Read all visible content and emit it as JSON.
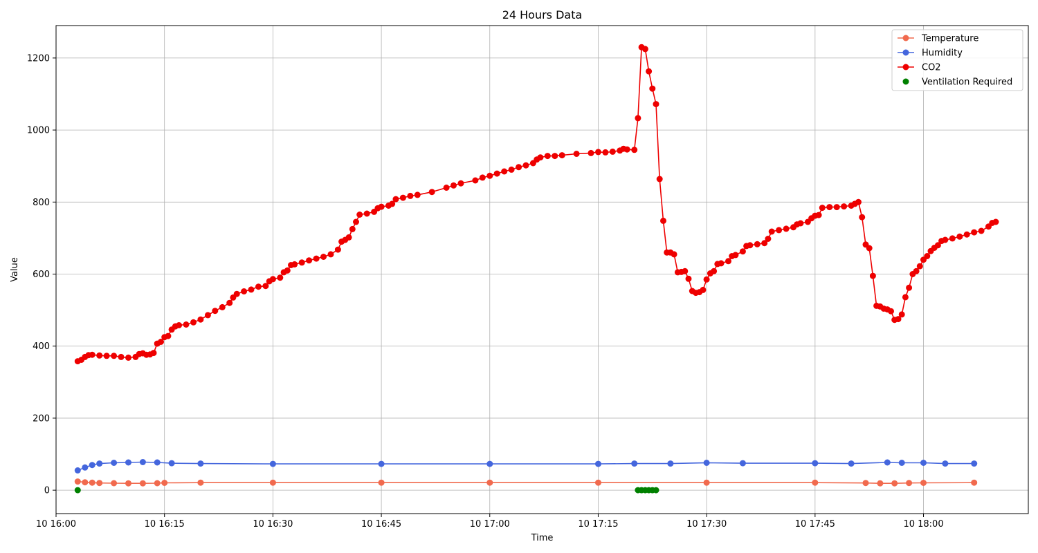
{
  "chart_data": {
    "type": "line",
    "title": "24 Hours Data",
    "xlabel": "Time",
    "ylabel": "Value",
    "xlim": [
      "16:00:00",
      "18:14:30"
    ],
    "ylim": [
      -65,
      1290
    ],
    "grid": true,
    "legend_position": "top-right",
    "x_ticks": [
      "16:00",
      "16:15",
      "16:30",
      "16:45",
      "17:00",
      "17:15",
      "17:30",
      "17:45",
      "18:00"
    ],
    "x_tick_labels": [
      "10 16:00",
      "10 16:15",
      "10 16:30",
      "10 16:45",
      "10 17:00",
      "10 17:15",
      "10 17:30",
      "10 17:45",
      "10 18:00"
    ],
    "y_ticks": [
      0,
      200,
      400,
      600,
      800,
      1000,
      1200
    ],
    "y_tick_labels": [
      "0",
      "200",
      "400",
      "600",
      "800",
      "1000",
      "1200"
    ],
    "series": [
      {
        "name": "Temperature",
        "color": "#f16a4e",
        "style": "line-marker",
        "points": [
          [
            "16:03",
            24
          ],
          [
            "16:04",
            22
          ],
          [
            "16:05",
            21
          ],
          [
            "16:06",
            20
          ],
          [
            "16:08",
            19.5
          ],
          [
            "16:10",
            19
          ],
          [
            "16:12",
            19
          ],
          [
            "16:14",
            19.5
          ],
          [
            "16:15",
            20.5
          ],
          [
            "16:20",
            21
          ],
          [
            "16:30",
            21
          ],
          [
            "16:45",
            21
          ],
          [
            "17:00",
            21
          ],
          [
            "17:15",
            21
          ],
          [
            "17:30",
            21
          ],
          [
            "17:45",
            21
          ],
          [
            "17:52",
            20
          ],
          [
            "17:54",
            19
          ],
          [
            "17:56",
            19
          ],
          [
            "17:58",
            20
          ],
          [
            "18:00",
            20.5
          ],
          [
            "18:07",
            21
          ]
        ]
      },
      {
        "name": "Humidity",
        "color": "#4466dd",
        "style": "line-marker",
        "points": [
          [
            "16:03",
            55
          ],
          [
            "16:04",
            63
          ],
          [
            "16:05",
            70
          ],
          [
            "16:06",
            74
          ],
          [
            "16:08",
            76
          ],
          [
            "16:10",
            77
          ],
          [
            "16:12",
            78
          ],
          [
            "16:14",
            77
          ],
          [
            "16:16",
            75
          ],
          [
            "16:20",
            74
          ],
          [
            "16:30",
            73
          ],
          [
            "16:45",
            73
          ],
          [
            "17:00",
            73
          ],
          [
            "17:15",
            73
          ],
          [
            "17:20",
            74
          ],
          [
            "17:25",
            74
          ],
          [
            "17:30",
            76
          ],
          [
            "17:35",
            75
          ],
          [
            "17:45",
            75
          ],
          [
            "17:50",
            74
          ],
          [
            "17:55",
            77
          ],
          [
            "17:57",
            76
          ],
          [
            "18:00",
            76
          ],
          [
            "18:03",
            74
          ],
          [
            "18:07",
            74
          ]
        ]
      },
      {
        "name": "CO2",
        "color": "#ee0000",
        "style": "line-marker",
        "points": [
          [
            "16:03",
            358
          ],
          [
            "16:03:30",
            362
          ],
          [
            "16:04",
            370
          ],
          [
            "16:04:30",
            375
          ],
          [
            "16:05",
            376
          ],
          [
            "16:06",
            374
          ],
          [
            "16:07",
            373
          ],
          [
            "16:08",
            373
          ],
          [
            "16:09",
            370
          ],
          [
            "16:10",
            368
          ],
          [
            "16:11",
            370
          ],
          [
            "16:11:30",
            378
          ],
          [
            "16:12",
            380
          ],
          [
            "16:12:30",
            376
          ],
          [
            "16:13",
            377
          ],
          [
            "16:13:30",
            381
          ],
          [
            "16:14",
            407
          ],
          [
            "16:14:30",
            412
          ],
          [
            "16:15",
            425
          ],
          [
            "16:15:30",
            428
          ],
          [
            "16:16",
            446
          ],
          [
            "16:16:30",
            455
          ],
          [
            "16:17",
            458
          ],
          [
            "16:18",
            460
          ],
          [
            "16:19",
            466
          ],
          [
            "16:20",
            474
          ],
          [
            "16:21",
            486
          ],
          [
            "16:22",
            498
          ],
          [
            "16:23",
            508
          ],
          [
            "16:24",
            520
          ],
          [
            "16:24:30",
            535
          ],
          [
            "16:25",
            545
          ],
          [
            "16:26",
            552
          ],
          [
            "16:27",
            557
          ],
          [
            "16:28",
            565
          ],
          [
            "16:29",
            567
          ],
          [
            "16:29:30",
            580
          ],
          [
            "16:30",
            586
          ],
          [
            "16:31",
            590
          ],
          [
            "16:31:30",
            605
          ],
          [
            "16:32",
            610
          ],
          [
            "16:32:30",
            625
          ],
          [
            "16:33",
            627
          ],
          [
            "16:34",
            632
          ],
          [
            "16:35",
            638
          ],
          [
            "16:36",
            643
          ],
          [
            "16:37",
            648
          ],
          [
            "16:38",
            655
          ],
          [
            "16:39",
            668
          ],
          [
            "16:39:30",
            690
          ],
          [
            "16:40",
            695
          ],
          [
            "16:40:30",
            702
          ],
          [
            "16:41",
            725
          ],
          [
            "16:41:30",
            745
          ],
          [
            "16:42",
            765
          ],
          [
            "16:43",
            768
          ],
          [
            "16:44",
            773
          ],
          [
            "16:44:30",
            783
          ],
          [
            "16:45",
            787
          ],
          [
            "16:46",
            790
          ],
          [
            "16:46:30",
            795
          ],
          [
            "16:47",
            808
          ],
          [
            "16:48",
            812
          ],
          [
            "16:49",
            817
          ],
          [
            "16:50",
            820
          ],
          [
            "16:52",
            828
          ],
          [
            "16:54",
            840
          ],
          [
            "16:55",
            846
          ],
          [
            "16:56",
            852
          ],
          [
            "16:58",
            860
          ],
          [
            "16:59",
            868
          ],
          [
            "17:00",
            873
          ],
          [
            "17:01",
            879
          ],
          [
            "17:02",
            885
          ],
          [
            "17:03",
            890
          ],
          [
            "17:04",
            897
          ],
          [
            "17:05",
            902
          ],
          [
            "17:06",
            908
          ],
          [
            "17:06:30",
            918
          ],
          [
            "17:07",
            924
          ],
          [
            "17:08",
            928
          ],
          [
            "17:09",
            928
          ],
          [
            "17:10",
            930
          ],
          [
            "17:12",
            934
          ],
          [
            "17:14",
            936
          ],
          [
            "17:15",
            939
          ],
          [
            "17:16",
            938
          ],
          [
            "17:17",
            940
          ],
          [
            "17:18",
            943
          ],
          [
            "17:18:30",
            948
          ],
          [
            "17:19",
            946
          ],
          [
            "17:20",
            945
          ],
          [
            "17:20:30",
            1033
          ],
          [
            "17:21",
            1230
          ],
          [
            "17:21:30",
            1225
          ],
          [
            "17:22",
            1163
          ],
          [
            "17:22:30",
            1115
          ],
          [
            "17:23",
            1072
          ],
          [
            "17:23:30",
            864
          ],
          [
            "17:24",
            748
          ],
          [
            "17:24:30",
            660
          ],
          [
            "17:25",
            660
          ],
          [
            "17:25:30",
            655
          ],
          [
            "17:26",
            605
          ],
          [
            "17:26:30",
            606
          ],
          [
            "17:27",
            608
          ],
          [
            "17:27:30",
            587
          ],
          [
            "17:28",
            553
          ],
          [
            "17:28:30",
            548
          ],
          [
            "17:29",
            550
          ],
          [
            "17:29:30",
            556
          ],
          [
            "17:30",
            585
          ],
          [
            "17:30:30",
            602
          ],
          [
            "17:31",
            608
          ],
          [
            "17:31:30",
            628
          ],
          [
            "17:32",
            630
          ],
          [
            "17:33",
            636
          ],
          [
            "17:33:30",
            650
          ],
          [
            "17:34",
            653
          ],
          [
            "17:35",
            663
          ],
          [
            "17:35:30",
            678
          ],
          [
            "17:36",
            680
          ],
          [
            "17:37",
            683
          ],
          [
            "17:38",
            686
          ],
          [
            "17:38:30",
            698
          ],
          [
            "17:39",
            718
          ],
          [
            "17:40",
            722
          ],
          [
            "17:41",
            726
          ],
          [
            "17:42",
            730
          ],
          [
            "17:42:30",
            738
          ],
          [
            "17:43",
            741
          ],
          [
            "17:44",
            745
          ],
          [
            "17:44:30",
            755
          ],
          [
            "17:45",
            762
          ],
          [
            "17:45:30",
            764
          ],
          [
            "17:46",
            784
          ],
          [
            "17:47",
            786
          ],
          [
            "17:48",
            786
          ],
          [
            "17:49",
            788
          ],
          [
            "17:50",
            790
          ],
          [
            "17:50:30",
            795
          ],
          [
            "17:51",
            800
          ],
          [
            "17:51:30",
            758
          ],
          [
            "17:52",
            682
          ],
          [
            "17:52:30",
            672
          ],
          [
            "17:53",
            595
          ],
          [
            "17:53:30",
            512
          ],
          [
            "17:54",
            510
          ],
          [
            "17:54:30",
            504
          ],
          [
            "17:55",
            502
          ],
          [
            "17:55:30",
            497
          ],
          [
            "17:56",
            473
          ],
          [
            "17:56:30",
            475
          ],
          [
            "17:57",
            488
          ],
          [
            "17:57:30",
            536
          ],
          [
            "17:58",
            562
          ],
          [
            "17:58:30",
            600
          ],
          [
            "17:59",
            608
          ],
          [
            "17:59:30",
            622
          ],
          [
            "18:00",
            640
          ],
          [
            "18:00:30",
            650
          ],
          [
            "18:01",
            664
          ],
          [
            "18:01:30",
            673
          ],
          [
            "18:02",
            680
          ],
          [
            "18:02:30",
            692
          ],
          [
            "18:03",
            695
          ],
          [
            "18:04",
            699
          ],
          [
            "18:05",
            704
          ],
          [
            "18:06",
            710
          ],
          [
            "18:07",
            716
          ],
          [
            "18:08",
            720
          ],
          [
            "18:09",
            732
          ],
          [
            "18:09:30",
            742
          ],
          [
            "18:10",
            745
          ]
        ]
      },
      {
        "name": "Ventilation Required",
        "color": "#008000",
        "style": "scatter",
        "points": [
          [
            "16:03",
            0
          ],
          [
            "17:20:30",
            0
          ],
          [
            "17:21",
            0
          ],
          [
            "17:21:30",
            0
          ],
          [
            "17:22",
            0
          ],
          [
            "17:22:30",
            0
          ],
          [
            "17:23",
            0
          ]
        ]
      }
    ]
  }
}
